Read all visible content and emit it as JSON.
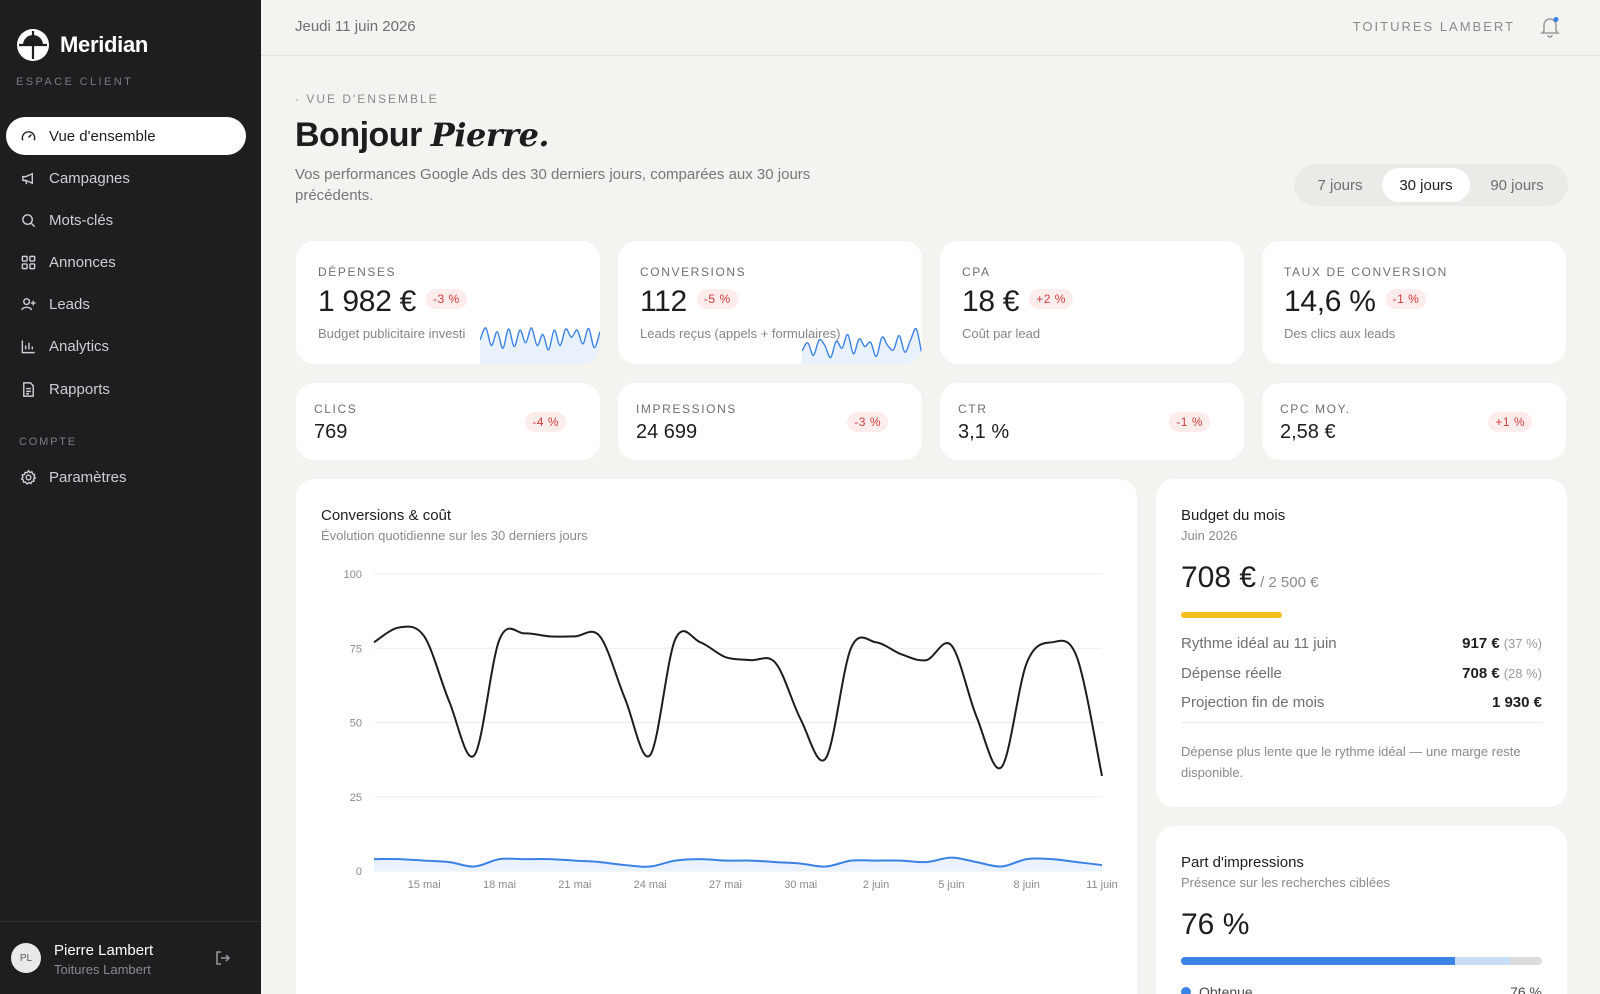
{
  "brand": {
    "name": "Meridian",
    "subtitle": "ESPACE CLIENT"
  },
  "sidebar": {
    "items": [
      {
        "label": "Vue d'ensemble",
        "icon": "gauge-icon",
        "active": true
      },
      {
        "label": "Campagnes",
        "icon": "megaphone-icon"
      },
      {
        "label": "Mots-clés",
        "icon": "search-icon"
      },
      {
        "label": "Annonces",
        "icon": "grid-icon"
      },
      {
        "label": "Leads",
        "icon": "user-plus-icon"
      },
      {
        "label": "Analytics",
        "icon": "bar-chart-icon"
      },
      {
        "label": "Rapports",
        "icon": "document-icon"
      }
    ],
    "section_label": "COMPTE",
    "account_items": [
      {
        "label": "Paramètres",
        "icon": "gear-icon"
      }
    ],
    "user": {
      "initials": "PL",
      "name": "Pierre Lambert",
      "company": "Toitures Lambert"
    }
  },
  "topbar": {
    "date": "Jeudi 11 juin 2026",
    "company": "TOITURES LAMBERT"
  },
  "header": {
    "eyebrow": "· VUE D'ENSEMBLE",
    "greeting": "Bonjour",
    "name": "Pierre.",
    "intro": "Vos performances Google Ads des 30 derniers jours, comparées aux 30 jours précédents.",
    "ranges": [
      "7 jours",
      "30 jours",
      "90 jours"
    ],
    "active_range": "30 jours"
  },
  "kpis": [
    {
      "label": "DÉPENSES",
      "value": "1 982 €",
      "change": "-3 %",
      "note": "Budget publicitaire investi",
      "spark": [
        40,
        62,
        30,
        55,
        25,
        60,
        28,
        58,
        35,
        62,
        30,
        50,
        22,
        58,
        30,
        60,
        45,
        58,
        33,
        61,
        26,
        55
      ]
    },
    {
      "label": "CONVERSIONS",
      "value": "112",
      "change": "-5 %",
      "note": "Leads reçus (appels + formulaires)",
      "spark": [
        20,
        35,
        12,
        40,
        30,
        8,
        38,
        25,
        50,
        15,
        42,
        28,
        36,
        10,
        45,
        30,
        22,
        48,
        18,
        40,
        60,
        12
      ]
    },
    {
      "label": "CPA",
      "value": "18 €",
      "change": "+2 %",
      "note": "Coût par lead"
    },
    {
      "label": "TAUX DE CONVERSION",
      "value": "14,6 %",
      "change": "-1 %",
      "note": "Des clics aux leads"
    }
  ],
  "minis": [
    {
      "label": "CLICS",
      "value": "769",
      "change": "-4 %"
    },
    {
      "label": "IMPRESSIONS",
      "value": "24 699",
      "change": "-3 %"
    },
    {
      "label": "CTR",
      "value": "3,1 %",
      "change": "-1 %"
    },
    {
      "label": "CPC MOY.",
      "value": "2,58 €",
      "change": "+1 %"
    }
  ],
  "chart_data": {
    "type": "line",
    "title": "Conversions & coût",
    "subtitle": "Évolution quotidienne sur les 30 derniers jours",
    "ylim": [
      0,
      100
    ],
    "y_ticks": [
      "100",
      "75",
      "50",
      "25",
      "0"
    ],
    "x_ticks": [
      "15 mai",
      "18 mai",
      "21 mai",
      "24 mai",
      "27 mai",
      "30 mai",
      "2 juin",
      "5 juin",
      "8 juin",
      "11 juin"
    ],
    "series": [
      {
        "values": [
          77,
          82,
          79,
          57,
          39,
          78,
          80,
          79,
          79,
          79,
          58,
          39,
          78,
          77,
          72,
          71,
          70,
          51,
          38,
          75,
          77,
          73,
          71,
          76,
          52,
          35,
          70,
          77,
          72,
          32
        ]
      },
      {
        "values": [
          4,
          4,
          3.5,
          3,
          1.5,
          4,
          4,
          4,
          3.5,
          3,
          2,
          1.5,
          3.5,
          4,
          3.5,
          3.5,
          3,
          2.5,
          1.5,
          3.5,
          3.5,
          3.5,
          3,
          4.5,
          3,
          1.5,
          4,
          4,
          3,
          2
        ]
      }
    ]
  },
  "budget": {
    "title": "Budget du mois",
    "subtitle": "Juin 2026",
    "value": "708 €",
    "total": "/ 2 500 €",
    "progress": 0.28,
    "rows": [
      {
        "label": "Rythme idéal au 11 juin",
        "value": "917 €",
        "pct": "(37 %)"
      },
      {
        "label": "Dépense réelle",
        "value": "708 €",
        "pct": "(28 %)"
      },
      {
        "label": "Projection fin de mois",
        "value": "1 930 €",
        "pct": ""
      }
    ],
    "note": "Dépense plus lente que le rythme idéal — une marge reste disponible."
  },
  "share": {
    "title": "Part d'impressions",
    "subtitle": "Présence sur les recherches ciblées",
    "value": "76 %",
    "fill": 0.76,
    "secondary": 0.15,
    "legend_label": "Obtenue",
    "legend_value": "76 %"
  },
  "colors": {
    "accent": "#3b82e6",
    "budget": "#f2bd1f",
    "negative": "#d23c3c",
    "sidebar": "#1e1e20"
  }
}
